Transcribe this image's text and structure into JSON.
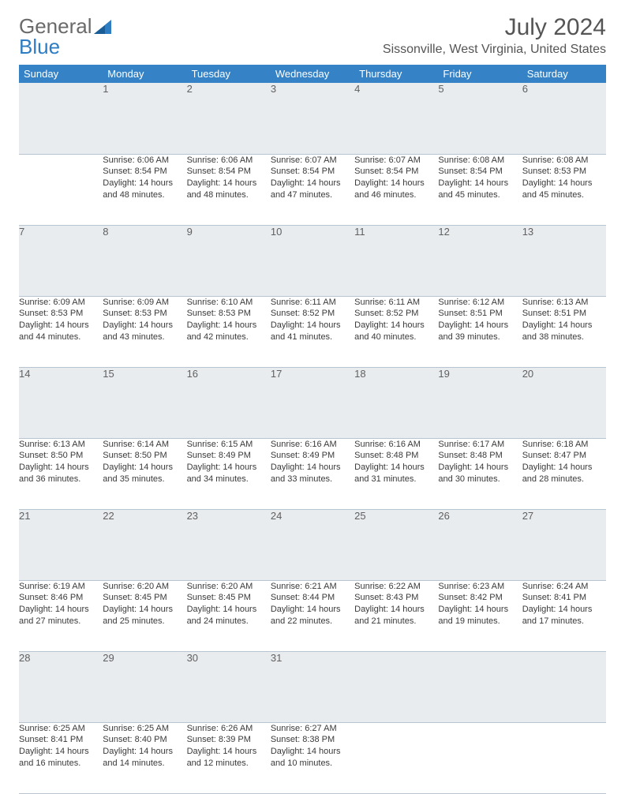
{
  "brand": {
    "part1": "General",
    "part2": "Blue"
  },
  "title": "July 2024",
  "location": "Sissonville, West Virginia, United States",
  "header_bg": "#3583c6",
  "daynum_bg": "#e9ecef",
  "weekday_labels": [
    "Sunday",
    "Monday",
    "Tuesday",
    "Wednesday",
    "Thursday",
    "Friday",
    "Saturday"
  ],
  "weeks": [
    {
      "nums": [
        "",
        "1",
        "2",
        "3",
        "4",
        "5",
        "6"
      ],
      "cells": [
        [],
        [
          "Sunrise: 6:06 AM",
          "Sunset: 8:54 PM",
          "Daylight: 14 hours",
          "and 48 minutes."
        ],
        [
          "Sunrise: 6:06 AM",
          "Sunset: 8:54 PM",
          "Daylight: 14 hours",
          "and 48 minutes."
        ],
        [
          "Sunrise: 6:07 AM",
          "Sunset: 8:54 PM",
          "Daylight: 14 hours",
          "and 47 minutes."
        ],
        [
          "Sunrise: 6:07 AM",
          "Sunset: 8:54 PM",
          "Daylight: 14 hours",
          "and 46 minutes."
        ],
        [
          "Sunrise: 6:08 AM",
          "Sunset: 8:54 PM",
          "Daylight: 14 hours",
          "and 45 minutes."
        ],
        [
          "Sunrise: 6:08 AM",
          "Sunset: 8:53 PM",
          "Daylight: 14 hours",
          "and 45 minutes."
        ]
      ]
    },
    {
      "nums": [
        "7",
        "8",
        "9",
        "10",
        "11",
        "12",
        "13"
      ],
      "cells": [
        [
          "Sunrise: 6:09 AM",
          "Sunset: 8:53 PM",
          "Daylight: 14 hours",
          "and 44 minutes."
        ],
        [
          "Sunrise: 6:09 AM",
          "Sunset: 8:53 PM",
          "Daylight: 14 hours",
          "and 43 minutes."
        ],
        [
          "Sunrise: 6:10 AM",
          "Sunset: 8:53 PM",
          "Daylight: 14 hours",
          "and 42 minutes."
        ],
        [
          "Sunrise: 6:11 AM",
          "Sunset: 8:52 PM",
          "Daylight: 14 hours",
          "and 41 minutes."
        ],
        [
          "Sunrise: 6:11 AM",
          "Sunset: 8:52 PM",
          "Daylight: 14 hours",
          "and 40 minutes."
        ],
        [
          "Sunrise: 6:12 AM",
          "Sunset: 8:51 PM",
          "Daylight: 14 hours",
          "and 39 minutes."
        ],
        [
          "Sunrise: 6:13 AM",
          "Sunset: 8:51 PM",
          "Daylight: 14 hours",
          "and 38 minutes."
        ]
      ]
    },
    {
      "nums": [
        "14",
        "15",
        "16",
        "17",
        "18",
        "19",
        "20"
      ],
      "cells": [
        [
          "Sunrise: 6:13 AM",
          "Sunset: 8:50 PM",
          "Daylight: 14 hours",
          "and 36 minutes."
        ],
        [
          "Sunrise: 6:14 AM",
          "Sunset: 8:50 PM",
          "Daylight: 14 hours",
          "and 35 minutes."
        ],
        [
          "Sunrise: 6:15 AM",
          "Sunset: 8:49 PM",
          "Daylight: 14 hours",
          "and 34 minutes."
        ],
        [
          "Sunrise: 6:16 AM",
          "Sunset: 8:49 PM",
          "Daylight: 14 hours",
          "and 33 minutes."
        ],
        [
          "Sunrise: 6:16 AM",
          "Sunset: 8:48 PM",
          "Daylight: 14 hours",
          "and 31 minutes."
        ],
        [
          "Sunrise: 6:17 AM",
          "Sunset: 8:48 PM",
          "Daylight: 14 hours",
          "and 30 minutes."
        ],
        [
          "Sunrise: 6:18 AM",
          "Sunset: 8:47 PM",
          "Daylight: 14 hours",
          "and 28 minutes."
        ]
      ]
    },
    {
      "nums": [
        "21",
        "22",
        "23",
        "24",
        "25",
        "26",
        "27"
      ],
      "cells": [
        [
          "Sunrise: 6:19 AM",
          "Sunset: 8:46 PM",
          "Daylight: 14 hours",
          "and 27 minutes."
        ],
        [
          "Sunrise: 6:20 AM",
          "Sunset: 8:45 PM",
          "Daylight: 14 hours",
          "and 25 minutes."
        ],
        [
          "Sunrise: 6:20 AM",
          "Sunset: 8:45 PM",
          "Daylight: 14 hours",
          "and 24 minutes."
        ],
        [
          "Sunrise: 6:21 AM",
          "Sunset: 8:44 PM",
          "Daylight: 14 hours",
          "and 22 minutes."
        ],
        [
          "Sunrise: 6:22 AM",
          "Sunset: 8:43 PM",
          "Daylight: 14 hours",
          "and 21 minutes."
        ],
        [
          "Sunrise: 6:23 AM",
          "Sunset: 8:42 PM",
          "Daylight: 14 hours",
          "and 19 minutes."
        ],
        [
          "Sunrise: 6:24 AM",
          "Sunset: 8:41 PM",
          "Daylight: 14 hours",
          "and 17 minutes."
        ]
      ]
    },
    {
      "nums": [
        "28",
        "29",
        "30",
        "31",
        "",
        "",
        ""
      ],
      "cells": [
        [
          "Sunrise: 6:25 AM",
          "Sunset: 8:41 PM",
          "Daylight: 14 hours",
          "and 16 minutes."
        ],
        [
          "Sunrise: 6:25 AM",
          "Sunset: 8:40 PM",
          "Daylight: 14 hours",
          "and 14 minutes."
        ],
        [
          "Sunrise: 6:26 AM",
          "Sunset: 8:39 PM",
          "Daylight: 14 hours",
          "and 12 minutes."
        ],
        [
          "Sunrise: 6:27 AM",
          "Sunset: 8:38 PM",
          "Daylight: 14 hours",
          "and 10 minutes."
        ],
        [],
        [],
        []
      ]
    }
  ]
}
